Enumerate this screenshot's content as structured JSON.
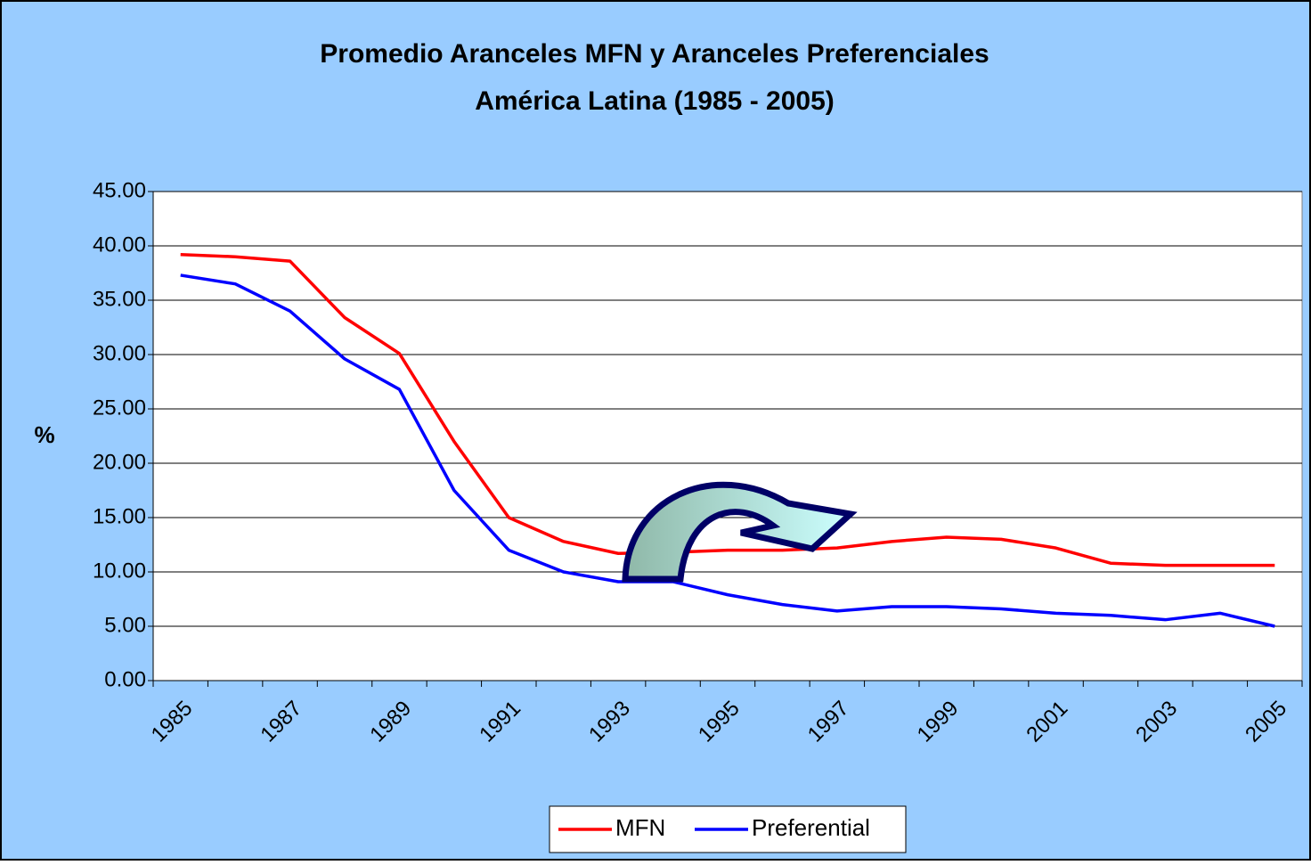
{
  "chart_data": {
    "type": "line",
    "title": "Promedio Aranceles MFN y Aranceles Preferenciales",
    "subtitle": "América Latina (1985 - 2005)",
    "y_label": "%",
    "categories": [
      "1985",
      null,
      "1987",
      null,
      "1989",
      null,
      "1991",
      null,
      "1993",
      null,
      "1995",
      null,
      "1997",
      null,
      "1999",
      null,
      "2001",
      null,
      "2003",
      null,
      "2005"
    ],
    "series": [
      {
        "name": "MFN",
        "color": "#ff0000",
        "values": [
          39.2,
          39.0,
          38.6,
          33.4,
          30.1,
          22.0,
          15.0,
          12.8,
          11.7,
          11.8,
          12.0,
          12.0,
          12.2,
          12.8,
          13.2,
          13.0,
          12.2,
          10.8,
          10.6,
          10.6,
          10.6
        ]
      },
      {
        "name": "Preferential",
        "color": "#0000ff",
        "values": [
          37.3,
          36.5,
          34.0,
          29.6,
          26.8,
          17.5,
          12.0,
          10.0,
          9.1,
          9.1,
          7.9,
          7.0,
          6.4,
          6.8,
          6.8,
          6.6,
          6.2,
          6.0,
          5.6,
          6.2,
          5.0
        ]
      }
    ],
    "ylim": [
      0,
      45
    ],
    "yticks": [
      {
        "value": 0,
        "label": "0.00"
      },
      {
        "value": 5,
        "label": "5.00"
      },
      {
        "value": 10,
        "label": "10.00"
      },
      {
        "value": 15,
        "label": "15.00"
      },
      {
        "value": 20,
        "label": "20.00"
      },
      {
        "value": 25,
        "label": "25.00"
      },
      {
        "value": 30,
        "label": "30.00"
      },
      {
        "value": 35,
        "label": "35.00"
      },
      {
        "value": 40,
        "label": "40.00"
      },
      {
        "value": 45,
        "label": "45.00"
      }
    ],
    "grid": true,
    "legend": "bottom"
  }
}
